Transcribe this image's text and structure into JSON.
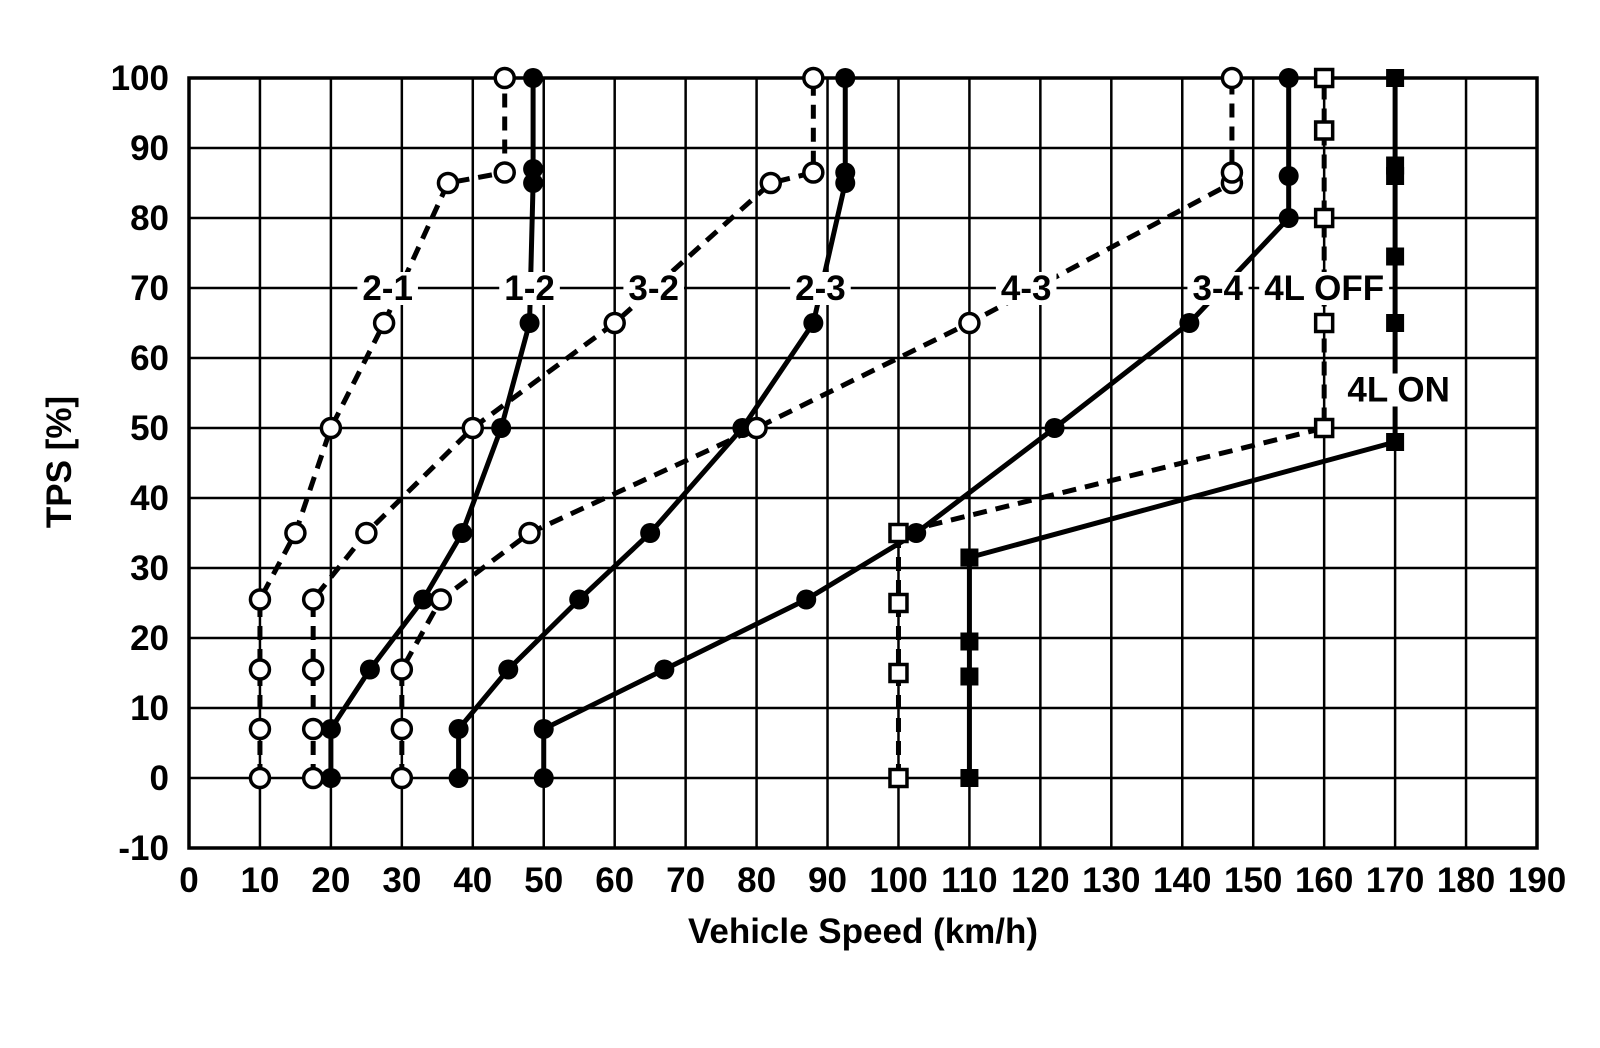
{
  "chart_data": {
    "type": "line",
    "title": "",
    "xlabel": "Vehicle Speed (km/h)",
    "ylabel": "TPS [%]",
    "xlim": [
      0,
      190
    ],
    "ylim": [
      -10,
      100
    ],
    "x_ticks": [
      0,
      10,
      20,
      30,
      40,
      50,
      60,
      70,
      80,
      90,
      100,
      110,
      120,
      130,
      140,
      150,
      160,
      170,
      180,
      190
    ],
    "y_ticks": [
      -10,
      0,
      10,
      20,
      30,
      40,
      50,
      60,
      70,
      80,
      90,
      100
    ],
    "grid": true,
    "legend_position": "inline-labels",
    "colors": {
      "foreground": "#000000",
      "background": "#ffffff"
    },
    "series": [
      {
        "name": "2-1",
        "line": "dashed",
        "marker": "circle",
        "fill": "open",
        "points": [
          [
            10,
            0
          ],
          [
            10,
            7
          ],
          [
            10,
            15.5
          ],
          [
            10,
            25.5
          ],
          [
            15,
            35
          ],
          [
            20,
            50
          ],
          [
            27.5,
            65
          ],
          [
            36.5,
            85
          ],
          [
            44.5,
            86.5
          ],
          [
            44.5,
            100
          ]
        ]
      },
      {
        "name": "1-2",
        "line": "solid",
        "marker": "circle",
        "fill": "filled",
        "points": [
          [
            20,
            0
          ],
          [
            20,
            7
          ],
          [
            25.5,
            15.5
          ],
          [
            33,
            25.5
          ],
          [
            38.5,
            35
          ],
          [
            44,
            50
          ],
          [
            48,
            65
          ],
          [
            48.5,
            85
          ],
          [
            48.5,
            87
          ],
          [
            48.5,
            100
          ]
        ]
      },
      {
        "name": "3-2",
        "line": "dashed",
        "marker": "circle",
        "fill": "open",
        "points": [
          [
            17.5,
            0
          ],
          [
            17.5,
            7
          ],
          [
            17.5,
            15.5
          ],
          [
            17.5,
            25.5
          ],
          [
            25,
            35
          ],
          [
            40,
            50
          ],
          [
            60,
            65
          ],
          [
            82,
            85
          ],
          [
            88,
            86.5
          ],
          [
            88,
            100
          ]
        ]
      },
      {
        "name": "2-3",
        "line": "solid",
        "marker": "circle",
        "fill": "filled",
        "points": [
          [
            38,
            0
          ],
          [
            38,
            7
          ],
          [
            45,
            15.5
          ],
          [
            55,
            25.5
          ],
          [
            65,
            35
          ],
          [
            78,
            50
          ],
          [
            88,
            65
          ],
          [
            92.5,
            85
          ],
          [
            92.5,
            86.5
          ],
          [
            92.5,
            100
          ]
        ]
      },
      {
        "name": "4-3",
        "line": "dashed",
        "marker": "circle",
        "fill": "open",
        "points": [
          [
            30,
            0
          ],
          [
            30,
            7
          ],
          [
            30,
            15.5
          ],
          [
            35.5,
            25.5
          ],
          [
            48,
            35
          ],
          [
            80,
            50
          ],
          [
            110,
            65
          ],
          [
            147,
            85
          ],
          [
            147,
            86.5
          ],
          [
            147,
            100
          ]
        ]
      },
      {
        "name": "3-4",
        "line": "solid",
        "marker": "circle",
        "fill": "filled",
        "points": [
          [
            50,
            0
          ],
          [
            50,
            7
          ],
          [
            67,
            15.5
          ],
          [
            87,
            25.5
          ],
          [
            102.5,
            35
          ],
          [
            122,
            50
          ],
          [
            141,
            65
          ],
          [
            155,
            80
          ],
          [
            155,
            86
          ],
          [
            155,
            100
          ]
        ]
      },
      {
        "name": "4L OFF",
        "line": "dashed",
        "marker": "square",
        "fill": "open",
        "points": [
          [
            100,
            0
          ],
          [
            100,
            15
          ],
          [
            100,
            25
          ],
          [
            100,
            35
          ],
          [
            160,
            50
          ],
          [
            160,
            65
          ],
          [
            160,
            80
          ],
          [
            160,
            92.5
          ],
          [
            160,
            100
          ]
        ]
      },
      {
        "name": "4L ON",
        "line": "solid",
        "marker": "square",
        "fill": "filled",
        "points": [
          [
            110,
            0
          ],
          [
            110,
            14.5
          ],
          [
            110,
            19.5
          ],
          [
            110,
            31.5
          ],
          [
            170,
            48
          ],
          [
            170,
            65
          ],
          [
            170,
            74.5
          ],
          [
            170,
            86
          ],
          [
            170,
            87.5
          ],
          [
            170,
            100
          ]
        ]
      }
    ],
    "curve_labels": [
      {
        "text": "2-1",
        "x": 28,
        "y": 70
      },
      {
        "text": "1-2",
        "x": 48,
        "y": 70
      },
      {
        "text": "3-2",
        "x": 65.5,
        "y": 70
      },
      {
        "text": "2-3",
        "x": 89,
        "y": 70
      },
      {
        "text": "4-3",
        "x": 118,
        "y": 70
      },
      {
        "text": "3-4",
        "x": 145,
        "y": 70
      },
      {
        "text": "4L OFF",
        "x": 160,
        "y": 70
      },
      {
        "text": "4L ON",
        "x": 170.5,
        "y": 55.5
      }
    ]
  }
}
